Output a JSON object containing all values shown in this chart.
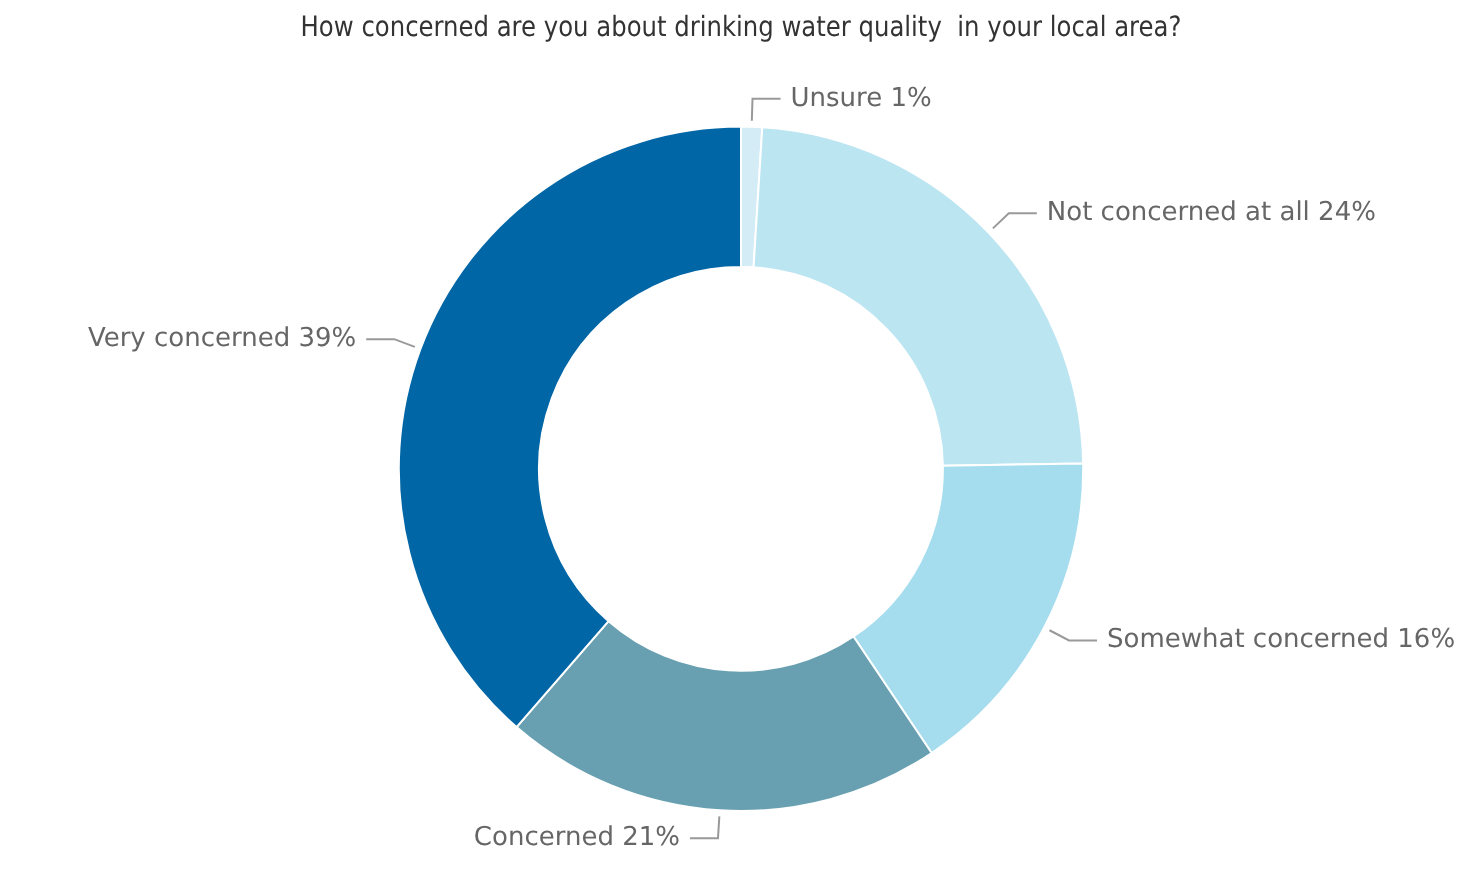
{
  "chart_data": {
    "type": "donut",
    "title": "How concerned are you about drinking water quality  in your local area?",
    "categories": [
      "Unsure",
      "Not concerned at all",
      "Somewhat concerned",
      "Concerned",
      "Very concerned"
    ],
    "values": [
      1,
      24,
      16,
      21,
      39
    ],
    "value_labels": [
      "1%",
      "24%",
      "16%",
      "21%",
      "39%"
    ],
    "colors": [
      "#d3ecf6",
      "#bce5f2",
      "#a5ddee",
      "#68a0b1",
      "#0066a6"
    ],
    "legend": false
  }
}
